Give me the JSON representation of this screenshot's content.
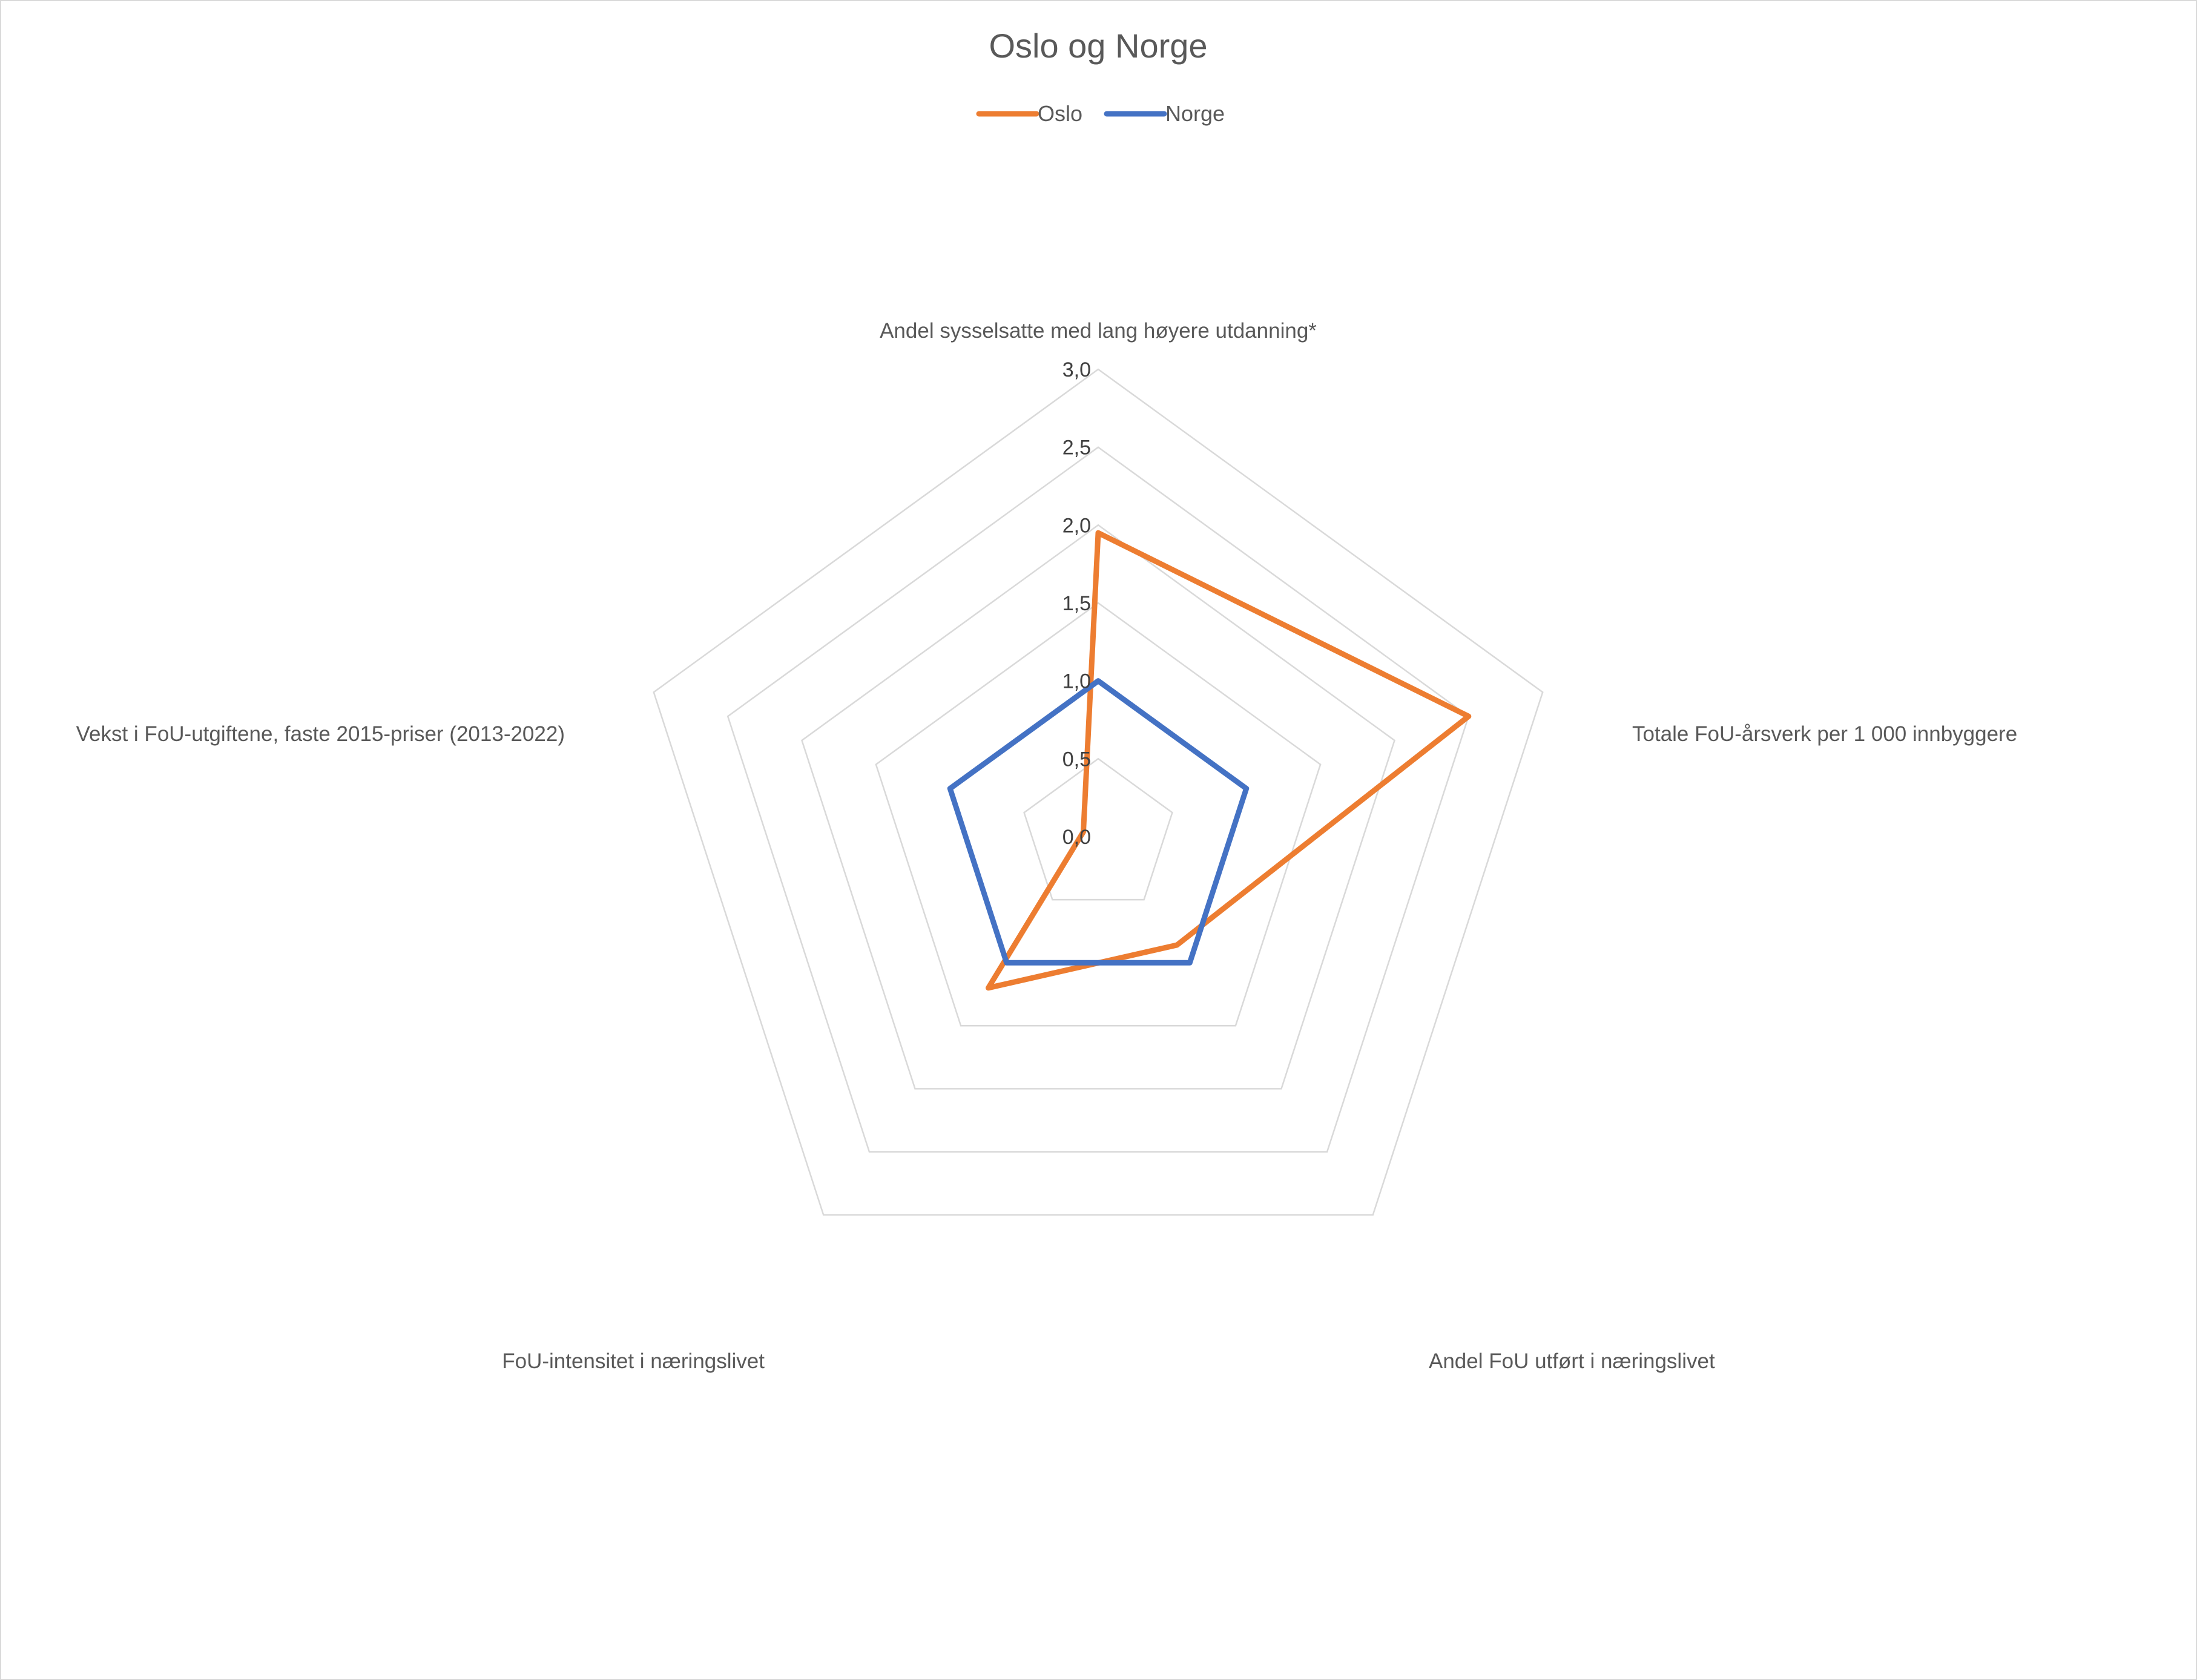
{
  "chart_data": {
    "type": "radar",
    "title": "Oslo og Norge",
    "axes": [
      "Andel sysselsatte med lang høyere utdanning*",
      "Totale FoU-årsverk per 1 000 innbyggere",
      "Andel FoU utført i næringslivet",
      "FoU-intensitet i næringslivet",
      "Vekst i FoU-utgiftene, faste 2015-priser (2013-2022)"
    ],
    "rlim": [
      0,
      3
    ],
    "ticks": [
      "0,0",
      "0,5",
      "1,0",
      "1,5",
      "2,0",
      "2,5",
      "3,0"
    ],
    "legend_position": "top",
    "series": [
      {
        "name": "Oslo",
        "color": "#ED7D31",
        "values": [
          1.95,
          2.5,
          0.86,
          1.2,
          0.1
        ]
      },
      {
        "name": "Norge",
        "color": "#4472C4",
        "values": [
          1.0,
          1.0,
          1.0,
          1.0,
          1.0
        ]
      }
    ],
    "grid_color": "#d9d9d9",
    "text_color": "#404040"
  }
}
